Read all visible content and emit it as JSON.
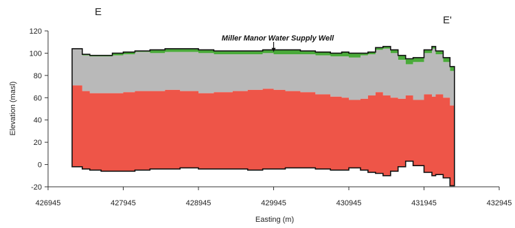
{
  "chart_data": {
    "type": "area",
    "section_start_label": "E",
    "section_end_label": "E'",
    "xlabel": "Easting (m)",
    "ylabel": "Elevation (masl)",
    "xlim": [
      426945,
      432945
    ],
    "ylim": [
      -20,
      120
    ],
    "x_ticks": [
      426945,
      427945,
      428945,
      429945,
      430945,
      431945,
      432945
    ],
    "y_ticks": [
      -20,
      0,
      20,
      40,
      60,
      80,
      100,
      120
    ],
    "annotation": {
      "text": "Miller Manor Water Supply Well",
      "x": 429945,
      "y": 101
    },
    "colors": {
      "green_unit": "#4aaa3a",
      "gray_unit": "#b9b9b9",
      "red_unit": "#ee5548",
      "outline": "#111111"
    },
    "x": [
      427265,
      427300,
      427400,
      427500,
      427650,
      427800,
      427945,
      428100,
      428300,
      428500,
      428700,
      428945,
      429150,
      429400,
      429600,
      429800,
      429945,
      430100,
      430300,
      430500,
      430700,
      430850,
      430945,
      431100,
      431200,
      431300,
      431400,
      431500,
      431600,
      431700,
      431800,
      431945,
      432050,
      432100,
      432200,
      432290,
      432350
    ],
    "series": [
      {
        "values": [
          104,
          104,
          99,
          98,
          98,
          100,
          101,
          102,
          103,
          104,
          104,
          103,
          102,
          102,
          102,
          103,
          103,
          103,
          102,
          101,
          100,
          101,
          100,
          100,
          101,
          105,
          106,
          103,
          98,
          95,
          96,
          103,
          106,
          102,
          96,
          88,
          85
        ]
      },
      {
        "values": [
          104,
          104,
          98,
          97,
          97,
          98,
          99,
          101,
          100,
          101,
          101,
          100,
          99,
          99,
          99,
          100,
          99,
          99,
          99,
          98,
          97,
          97,
          96,
          98,
          99,
          103,
          104,
          100,
          94,
          90,
          92,
          100,
          104,
          99,
          92,
          84,
          81
        ]
      },
      {
        "values": [
          71,
          71,
          66,
          64,
          64,
          64,
          65,
          66,
          66,
          67,
          66,
          64,
          65,
          66,
          67,
          68,
          67,
          66,
          65,
          63,
          61,
          60,
          58,
          59,
          62,
          65,
          62,
          60,
          59,
          62,
          58,
          63,
          61,
          63,
          60,
          53,
          51
        ]
      },
      {
        "values": [
          -2,
          -2,
          -4,
          -5,
          -6,
          -6,
          -6,
          -5,
          -4,
          -4,
          -3,
          -4,
          -4,
          -4,
          -5,
          -4,
          -4,
          -3,
          -3,
          -4,
          -5,
          -5,
          -3,
          -5,
          -7,
          -8,
          -10,
          -6,
          -2,
          3,
          -1,
          -7,
          -10,
          -9,
          -12,
          -19,
          -18
        ]
      }
    ]
  }
}
